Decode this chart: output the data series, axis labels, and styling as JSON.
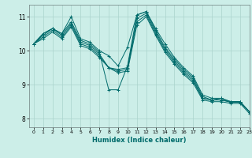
{
  "xlabel": "Humidex (Indice chaleur)",
  "ylabel": "",
  "background_color": "#cceee8",
  "line_color": "#006b6b",
  "grid_color": "#aad4cc",
  "xlim": [
    -0.5,
    23
  ],
  "ylim": [
    7.75,
    11.35
  ],
  "yticks": [
    8,
    9,
    10,
    11
  ],
  "xticks": [
    0,
    1,
    2,
    3,
    4,
    5,
    6,
    7,
    8,
    9,
    10,
    11,
    12,
    13,
    14,
    15,
    16,
    17,
    18,
    19,
    20,
    21,
    22,
    23
  ],
  "lines": [
    {
      "x": [
        0,
        1,
        2,
        3,
        4,
        5,
        6,
        7,
        8,
        9,
        10,
        11,
        12,
        13,
        14,
        15,
        16,
        17,
        18,
        19,
        20,
        21,
        22,
        23
      ],
      "y": [
        10.2,
        10.5,
        10.65,
        10.5,
        11.0,
        10.35,
        10.25,
        10.0,
        9.85,
        9.55,
        10.1,
        11.05,
        11.15,
        10.65,
        10.2,
        9.8,
        9.5,
        9.25,
        8.7,
        8.6,
        8.6,
        8.5,
        8.5,
        8.2
      ]
    },
    {
      "x": [
        0,
        1,
        2,
        3,
        4,
        5,
        6,
        7,
        8,
        9,
        10,
        11,
        12,
        13,
        14,
        15,
        16,
        17,
        18,
        19,
        20,
        21,
        22,
        23
      ],
      "y": [
        10.2,
        10.5,
        10.65,
        10.5,
        10.85,
        10.3,
        10.2,
        9.95,
        8.85,
        8.85,
        9.55,
        11.05,
        11.15,
        10.6,
        10.1,
        9.75,
        9.45,
        9.2,
        8.65,
        8.55,
        8.6,
        8.5,
        8.5,
        8.2
      ]
    },
    {
      "x": [
        0,
        1,
        2,
        3,
        4,
        5,
        6,
        7,
        8,
        9,
        10,
        11,
        12,
        13,
        14,
        15,
        16,
        17,
        18,
        19,
        20,
        21,
        22,
        23
      ],
      "y": [
        10.2,
        10.45,
        10.65,
        10.45,
        10.8,
        10.25,
        10.15,
        9.9,
        9.5,
        9.45,
        9.5,
        10.95,
        11.1,
        10.55,
        10.05,
        9.7,
        9.4,
        9.15,
        8.6,
        8.55,
        8.55,
        8.5,
        8.5,
        8.2
      ]
    },
    {
      "x": [
        0,
        1,
        2,
        3,
        4,
        5,
        6,
        7,
        8,
        9,
        10,
        11,
        12,
        13,
        14,
        15,
        16,
        17,
        18,
        19,
        20,
        21,
        22,
        23
      ],
      "y": [
        10.2,
        10.4,
        10.6,
        10.4,
        10.75,
        10.2,
        10.1,
        9.85,
        9.5,
        9.4,
        9.45,
        10.85,
        11.05,
        10.5,
        10.0,
        9.65,
        9.35,
        9.1,
        8.6,
        8.55,
        8.55,
        8.48,
        8.48,
        8.2
      ]
    },
    {
      "x": [
        0,
        1,
        2,
        3,
        4,
        5,
        6,
        7,
        8,
        9,
        10,
        11,
        12,
        13,
        14,
        15,
        16,
        17,
        18,
        19,
        20,
        21,
        22,
        23
      ],
      "y": [
        10.2,
        10.35,
        10.55,
        10.35,
        10.7,
        10.15,
        10.05,
        9.8,
        9.5,
        9.35,
        9.4,
        10.75,
        11.0,
        10.45,
        9.95,
        9.6,
        9.3,
        9.05,
        8.55,
        8.5,
        8.5,
        8.45,
        8.45,
        8.15
      ]
    }
  ]
}
